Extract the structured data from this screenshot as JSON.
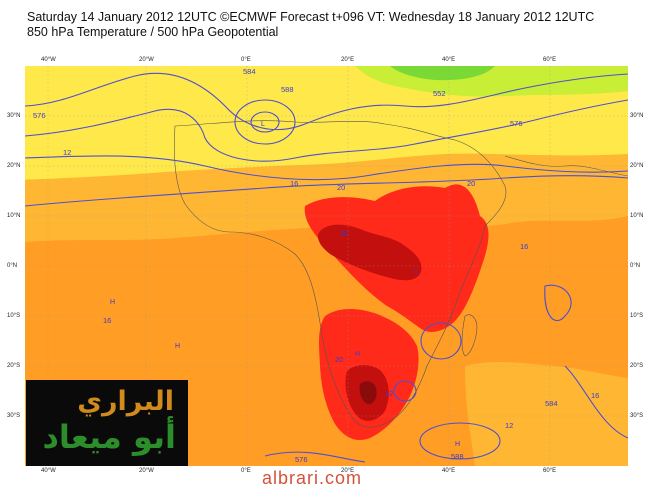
{
  "header": {
    "title": "Saturday 14 January 2012 12UTC ©ECMWF Forecast t+096 VT: Wednesday 18 January 2012 12UTC",
    "subtitle": "850 hPa Temperature / 500 hPa Geopotential"
  },
  "map": {
    "lon_labels": [
      "40°W",
      "20°W",
      "0°E",
      "20°E",
      "40°E",
      "60°E"
    ],
    "lat_labels": [
      "30°N",
      "20°N",
      "10°N",
      "0°N",
      "10°S",
      "20°S",
      "30°S"
    ],
    "contour_labels": [
      "576",
      "584",
      "588",
      "552",
      "576",
      "12",
      "16",
      "20",
      "20",
      "20",
      "16",
      "16",
      "20",
      "12",
      "588",
      "584",
      "576",
      "16",
      "12"
    ],
    "pressure_marks": [
      "L",
      "H",
      "H",
      "H",
      "H",
      "L"
    ],
    "colors": {
      "land": "#ffe84a",
      "warm": "#ff9d24",
      "hot": "#ff6a12",
      "very_hot": "#ff2a1a",
      "extreme": "#c40f0f",
      "cold": "#9be01f",
      "geopotential": "#4f4fd0"
    }
  },
  "logo": {
    "line1": "البراري",
    "line2": "أبو ميعاد"
  },
  "watermark": "albrari.com"
}
